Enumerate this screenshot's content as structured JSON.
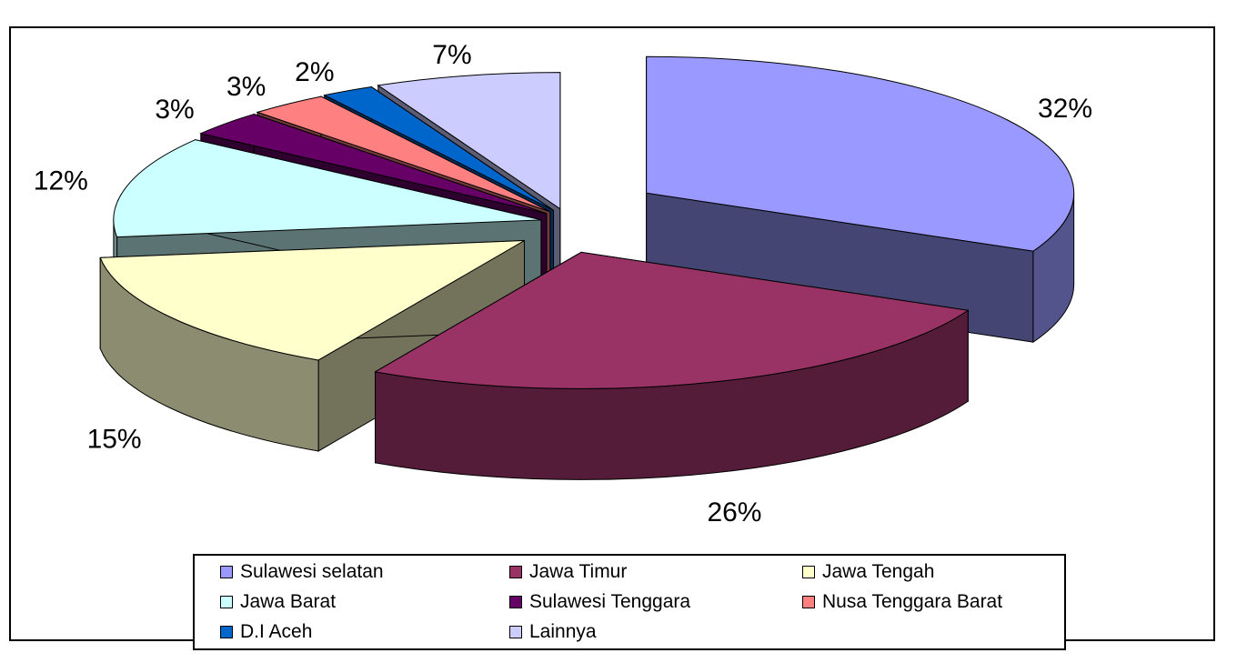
{
  "chart_data": {
    "type": "pie",
    "three_d": true,
    "exploded": true,
    "slices": [
      {
        "name": "Sulawesi selatan",
        "value": 32,
        "label": "32%",
        "color": "#9999FF"
      },
      {
        "name": "Jawa Timur",
        "value": 26,
        "label": "26%",
        "color": "#993366"
      },
      {
        "name": "Jawa Tengah",
        "value": 15,
        "label": "15%",
        "color": "#FFFFCC"
      },
      {
        "name": "Jawa Barat",
        "value": 12,
        "label": "12%",
        "color": "#CCFFFF"
      },
      {
        "name": "Sulawesi Tenggara",
        "value": 3,
        "label": "3%",
        "color": "#660066"
      },
      {
        "name": "Nusa Tenggara Barat",
        "value": 3,
        "label": "3%",
        "color": "#FF8080"
      },
      {
        "name": "D.I Aceh",
        "value": 2,
        "label": "2%",
        "color": "#0066CC"
      },
      {
        "name": "Lainnya",
        "value": 7,
        "label": "7%",
        "color": "#CCCCFF"
      }
    ],
    "legend_position": "bottom"
  }
}
